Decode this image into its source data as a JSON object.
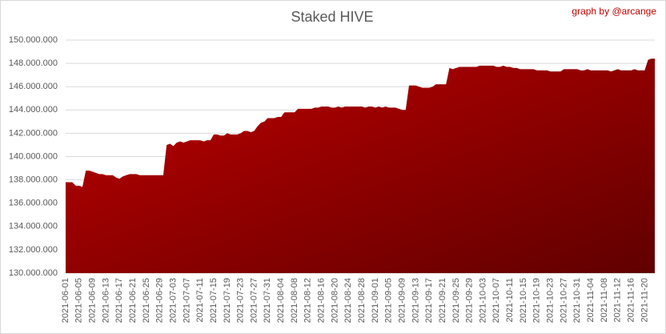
{
  "chart_data": {
    "type": "area",
    "title": "Staked HIVE",
    "annotation": "graph by @arcange",
    "color": "#c00000",
    "grid": true,
    "categories": [
      "2021-06-01",
      null,
      null,
      null,
      "2021-06-05",
      null,
      null,
      null,
      "2021-06-09",
      null,
      null,
      null,
      "2021-06-13",
      null,
      null,
      null,
      "2021-06-17",
      null,
      null,
      null,
      "2021-06-21",
      null,
      null,
      null,
      "2021-06-25",
      null,
      null,
      null,
      "2021-06-29",
      null,
      null,
      null,
      "2021-07-03",
      null,
      null,
      null,
      "2021-07-07",
      null,
      null,
      null,
      "2021-07-11",
      null,
      null,
      null,
      "2021-07-15",
      null,
      null,
      null,
      "2021-07-19",
      null,
      null,
      null,
      "2021-07-23",
      null,
      null,
      null,
      "2021-07-27",
      null,
      null,
      null,
      "2021-07-31",
      null,
      null,
      null,
      "2021-08-04",
      null,
      null,
      null,
      "2021-08-08",
      null,
      null,
      null,
      "2021-08-12",
      null,
      null,
      null,
      "2021-08-16",
      null,
      null,
      null,
      "2021-08-20",
      null,
      null,
      null,
      "2021-08-24",
      null,
      null,
      null,
      "2021-08-28",
      null,
      null,
      null,
      "2021-09-01",
      null,
      null,
      null,
      "2021-09-05",
      null,
      null,
      null,
      "2021-09-09",
      null,
      null,
      null,
      "2021-09-13",
      null,
      null,
      null,
      "2021-09-17",
      null,
      null,
      null,
      "2021-09-21",
      null,
      null,
      null,
      "2021-09-25",
      null,
      null,
      null,
      "2021-09-29",
      null,
      null,
      null,
      "2021-10-03",
      null,
      null,
      null,
      "2021-10-07",
      null,
      null,
      null,
      "2021-10-11",
      null,
      null,
      null,
      "2021-10-15",
      null,
      null,
      null,
      "2021-10-19",
      null,
      null,
      null,
      "2021-10-23",
      null,
      null,
      null,
      "2021-10-27",
      null,
      null,
      null,
      "2021-10-31",
      null,
      null,
      null,
      "2021-11-04",
      null,
      null,
      null,
      "2021-11-08",
      null,
      null,
      null,
      "2021-11-12",
      null,
      null,
      null,
      "2021-11-16",
      null,
      null,
      null,
      "2021-11-20",
      null,
      null,
      null
    ],
    "values": [
      137800000,
      137800000,
      137800000,
      137500000,
      137500000,
      137400000,
      138800000,
      138800000,
      138700000,
      138600000,
      138500000,
      138500000,
      138400000,
      138400000,
      138400000,
      138200000,
      138100000,
      138300000,
      138400000,
      138500000,
      138500000,
      138500000,
      138400000,
      138400000,
      138400000,
      138400000,
      138400000,
      138400000,
      138400000,
      138400000,
      141000000,
      141100000,
      140900000,
      141200000,
      141300000,
      141200000,
      141300000,
      141400000,
      141400000,
      141400000,
      141400000,
      141300000,
      141400000,
      141400000,
      141900000,
      141900000,
      141800000,
      141800000,
      142000000,
      141900000,
      141900000,
      141900000,
      142000000,
      142200000,
      142200000,
      142100000,
      142200000,
      142600000,
      142900000,
      143000000,
      143300000,
      143300000,
      143300000,
      143400000,
      143400000,
      143800000,
      143800000,
      143800000,
      143800000,
      144100000,
      144100000,
      144100000,
      144100000,
      144100000,
      144200000,
      144200000,
      144300000,
      144300000,
      144300000,
      144200000,
      144200000,
      144300000,
      144200000,
      144300000,
      144300000,
      144300000,
      144300000,
      144300000,
      144300000,
      144200000,
      144300000,
      144300000,
      144200000,
      144300000,
      144200000,
      144300000,
      144200000,
      144200000,
      144200000,
      144100000,
      144000000,
      144000000,
      146100000,
      146100000,
      146100000,
      146000000,
      145900000,
      145900000,
      145900000,
      146000000,
      146200000,
      146200000,
      146200000,
      146200000,
      147600000,
      147500000,
      147600000,
      147700000,
      147700000,
      147700000,
      147700000,
      147700000,
      147700000,
      147800000,
      147800000,
      147800000,
      147800000,
      147800000,
      147700000,
      147700000,
      147800000,
      147700000,
      147700000,
      147600000,
      147600000,
      147500000,
      147500000,
      147500000,
      147500000,
      147500000,
      147400000,
      147400000,
      147400000,
      147400000,
      147300000,
      147300000,
      147300000,
      147300000,
      147500000,
      147500000,
      147500000,
      147500000,
      147500000,
      147400000,
      147400000,
      147500000,
      147400000,
      147400000,
      147400000,
      147400000,
      147400000,
      147400000,
      147300000,
      147400000,
      147500000,
      147400000,
      147400000,
      147400000,
      147400000,
      147500000,
      147400000,
      147400000,
      147400000,
      148300000,
      148400000,
      148400000
    ],
    "ylim": [
      130000000,
      150000000
    ],
    "yticks": [
      {
        "value": 130000000,
        "label": "130.000.000"
      },
      {
        "value": 132000000,
        "label": "132.000.000"
      },
      {
        "value": 134000000,
        "label": "134.000.000"
      },
      {
        "value": 136000000,
        "label": "136.000.000"
      },
      {
        "value": 138000000,
        "label": "138.000.000"
      },
      {
        "value": 140000000,
        "label": "140.000.000"
      },
      {
        "value": 142000000,
        "label": "142.000.000"
      },
      {
        "value": 144000000,
        "label": "144.000.000"
      },
      {
        "value": 146000000,
        "label": "146.000.000"
      },
      {
        "value": 148000000,
        "label": "148.000.000"
      },
      {
        "value": 150000000,
        "label": "150.000.000"
      }
    ]
  }
}
